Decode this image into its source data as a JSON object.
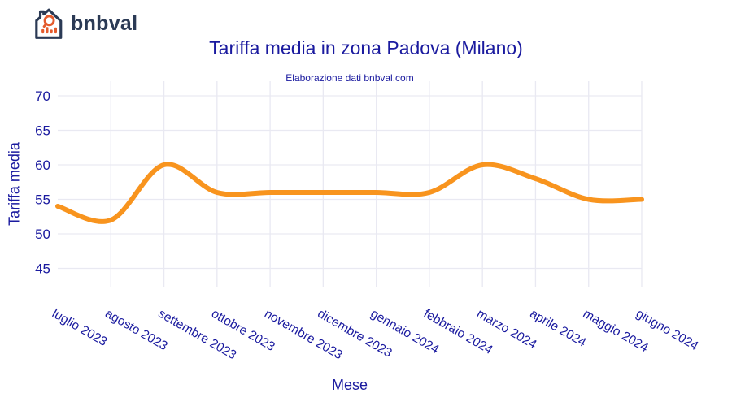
{
  "header": {
    "logo_text": "bnbval",
    "title": "Tariffa media in zona Padova (Milano)",
    "subtitle": "Elaborazione dati bnbval.com"
  },
  "colors": {
    "navy_text": "#1A1A9F",
    "logo_navy": "#2B3A55",
    "logo_orange": "#E45B2D",
    "line_orange": "#F8941E",
    "gridline": "#E9E9F2",
    "background": "#FFFFFF"
  },
  "chart_data": {
    "type": "line",
    "title": "Tariffa media in zona Padova (Milano)",
    "subtitle": "Elaborazione dati bnbval.com",
    "xlabel": "Mese",
    "ylabel": "Tariffa media",
    "categories": [
      "luglio 2023",
      "agosto 2023",
      "settembre 2023",
      "ottobre 2023",
      "novembre 2023",
      "dicembre 2023",
      "gennaio 2024",
      "febbraio 2024",
      "marzo 2024",
      "aprile 2024",
      "maggio 2024",
      "giugno 2024"
    ],
    "series": [
      {
        "name": "Tariffa media",
        "values": [
          54,
          52,
          60,
          56,
          56,
          56,
          56,
          56,
          60,
          58,
          55,
          55
        ]
      }
    ],
    "yticks": [
      45,
      50,
      55,
      60,
      65,
      70
    ],
    "ylim": [
      42,
      72
    ],
    "grid": "on",
    "legend": "none",
    "line_color": "#F8941E",
    "smoothing": "spline"
  }
}
